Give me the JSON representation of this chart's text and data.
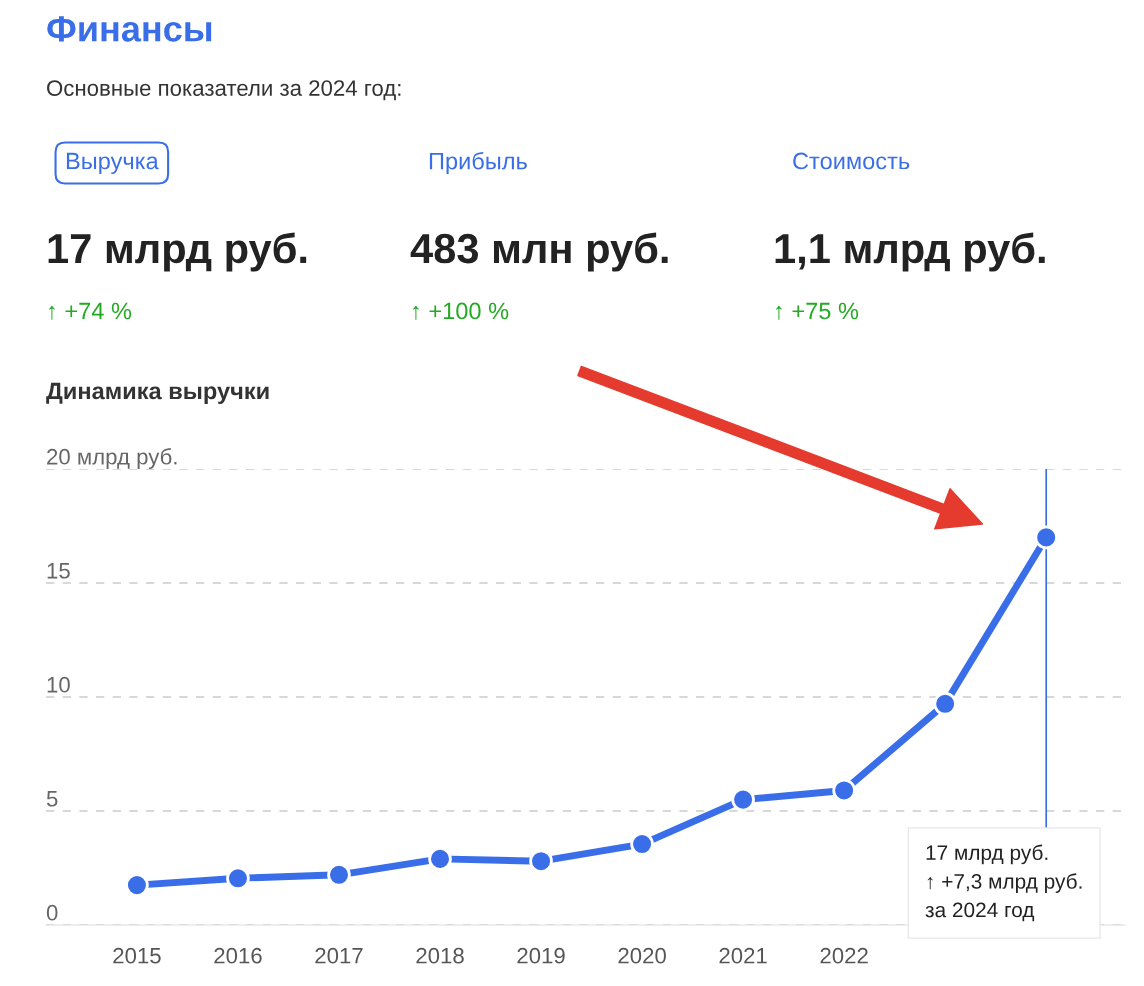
{
  "chart_data": {
    "type": "line",
    "title": "Финансы",
    "subtitle": "Основные показатели за 2024 год:",
    "annotations": [
      "Выручка",
      "Прибыль",
      "Стоимость",
      "17 млрд руб.",
      "483 млн руб.",
      "1,1 млрд руб.",
      "↑ +74 %",
      "↑ +100 %",
      "↑ +75 %",
      "Динамика выручки",
      "17 млрд руб.\n↑ +7,3 млрд руб.\nза 2024 год"
    ],
    "x": [
      2015,
      2016,
      2017,
      2018,
      2019,
      2020,
      2021,
      2022,
      2023,
      2024
    ],
    "series": [
      {
        "color": "#3a6ee8",
        "values": [
          1.75,
          2.05,
          2.2,
          2.9,
          2.8,
          3.55,
          5.5,
          5.9,
          9.7,
          17
        ]
      }
    ],
    "xlim": [
      2014.1,
      2024.78
    ],
    "xticks": [
      2015,
      2016,
      2017,
      2018,
      2019,
      2020,
      2021,
      2022
    ],
    "ylim": [
      0,
      20
    ],
    "yticks": [
      0,
      5,
      10,
      15,
      {
        "value": 20,
        "label": "20 млрд руб."
      }
    ],
    "ref_lines": [
      {
        "axis": "x",
        "value": 2024,
        "color": "#3a6ee8"
      }
    ],
    "grid": "y",
    "marker": "circle",
    "line_style": "solid",
    "legend": false
  }
}
